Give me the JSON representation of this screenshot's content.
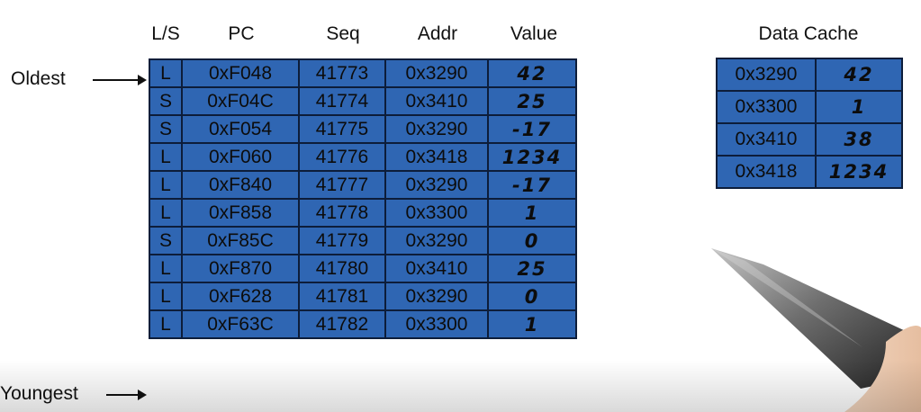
{
  "lsq": {
    "headers": [
      "L/S",
      "PC",
      "Seq",
      "Addr",
      "Value"
    ],
    "rows": [
      {
        "ls": "L",
        "pc": "0xF048",
        "seq": "41773",
        "addr": "0x3290",
        "value": "42"
      },
      {
        "ls": "S",
        "pc": "0xF04C",
        "seq": "41774",
        "addr": "0x3410",
        "value": "25"
      },
      {
        "ls": "S",
        "pc": "0xF054",
        "seq": "41775",
        "addr": "0x3290",
        "value": "-17"
      },
      {
        "ls": "L",
        "pc": "0xF060",
        "seq": "41776",
        "addr": "0x3418",
        "value": "1234"
      },
      {
        "ls": "L",
        "pc": "0xF840",
        "seq": "41777",
        "addr": "0x3290",
        "value": "-17"
      },
      {
        "ls": "L",
        "pc": "0xF858",
        "seq": "41778",
        "addr": "0x3300",
        "value": "1"
      },
      {
        "ls": "S",
        "pc": "0xF85C",
        "seq": "41779",
        "addr": "0x3290",
        "value": "0"
      },
      {
        "ls": "L",
        "pc": "0xF870",
        "seq": "41780",
        "addr": "0x3410",
        "value": "25"
      },
      {
        "ls": "L",
        "pc": "0xF628",
        "seq": "41781",
        "addr": "0x3290",
        "value": "0"
      },
      {
        "ls": "L",
        "pc": "0xF63C",
        "seq": "41782",
        "addr": "0x3300",
        "value": "1"
      }
    ]
  },
  "labels": {
    "oldest": "Oldest",
    "youngest": "Youngest"
  },
  "cache": {
    "title": "Data Cache",
    "rows": [
      {
        "addr": "0x3290",
        "value": "42"
      },
      {
        "addr": "0x3300",
        "value": "1"
      },
      {
        "addr": "0x3410",
        "value": "38"
      },
      {
        "addr": "0x3418",
        "value": "1234"
      }
    ]
  },
  "colors": {
    "cell": "#2f66b3",
    "border": "#0d1d3a"
  }
}
